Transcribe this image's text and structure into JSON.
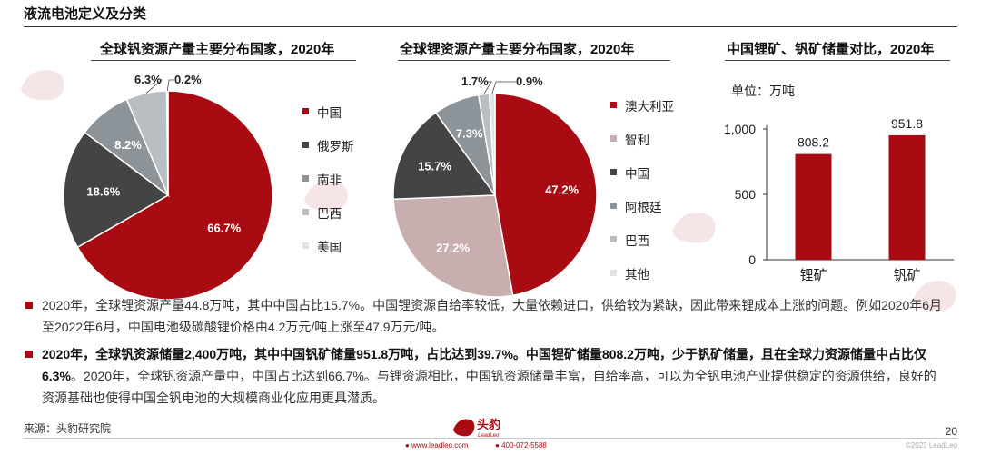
{
  "page": {
    "title": "液流电池定义及分类",
    "page_number": "20"
  },
  "colors": {
    "brand_red": "#a80c12",
    "dark_gray": "#444444",
    "mid_gray": "#8c9399",
    "light_gray": "#b9bec3",
    "pink": "#c9aeaf",
    "very_light_gray": "#e3e3e3"
  },
  "chart_data": [
    {
      "type": "pie",
      "title": "全球钒资源产量主要分布国家，2020年",
      "slices": [
        {
          "name": "中国",
          "value": 66.7,
          "label": "66.7%",
          "color": "#a80c12"
        },
        {
          "name": "俄罗斯",
          "value": 18.6,
          "label": "18.6%",
          "color": "#444444"
        },
        {
          "name": "南非",
          "value": 8.2,
          "label": "8.2%",
          "color": "#8c9399"
        },
        {
          "name": "巴西",
          "value": 6.3,
          "label": "6.3%",
          "color": "#b9bec3"
        },
        {
          "name": "美国",
          "value": 0.2,
          "label": "0.2%",
          "color": "#e3e3e3"
        }
      ],
      "legend_position": "right"
    },
    {
      "type": "pie",
      "title": "全球锂资源产量主要分布国家，2020年",
      "slices": [
        {
          "name": "澳大利亚",
          "value": 47.2,
          "label": "47.2%",
          "color": "#a80c12"
        },
        {
          "name": "智利",
          "value": 27.2,
          "label": "27.2%",
          "color": "#c9aeaf"
        },
        {
          "name": "中国",
          "value": 15.7,
          "label": "15.7%",
          "color": "#444444"
        },
        {
          "name": "阿根廷",
          "value": 7.3,
          "label": "7.3%",
          "color": "#8c9399"
        },
        {
          "name": "巴西",
          "value": 1.7,
          "label": "1.7%",
          "color": "#b9bec3"
        },
        {
          "name": "其他",
          "value": 0.9,
          "label": "0.9%",
          "color": "#e3e3e3"
        }
      ],
      "legend_position": "right"
    },
    {
      "type": "bar",
      "title": "中国锂矿、钒矿储量对比，2020年",
      "unit": "单位：万吨",
      "categories": [
        "锂矿",
        "钒矿"
      ],
      "values": [
        808.2,
        951.8
      ],
      "value_labels": [
        "808.2",
        "951.8"
      ],
      "ylim": [
        0,
        1000
      ],
      "yticks": [
        0,
        500,
        1000
      ],
      "ytick_labels": [
        "0",
        "500",
        "1,000"
      ],
      "color": "#a80c12",
      "grid": false
    }
  ],
  "bullets": [
    {
      "segments": [
        {
          "text": "2020年，全球锂资源产量44.8万吨，其中中国占比15.7%。中国锂资源自给率较低，大量依赖进口，供给较为紧缺，因此带来锂成本上涨的问题。例如2020年6月至2022年6月，中国电池级碳酸锂价格由4.2万元/吨上涨至47.9万元/吨。",
          "bold": false
        }
      ]
    },
    {
      "segments": [
        {
          "text": "2020年，全球钒资源储量2,400万吨，其中中国钒矿储量951.8万吨，占比达到39.7%。中国锂矿储量808.2万吨，少于钒矿储量，且在全球力资源储量中占比仅6.3%",
          "bold": true
        },
        {
          "text": "。2020年，全球钒资源产量中，中国占比达到66.7%。与锂资源相比，中国钒资源储量丰富，自给率高，可以为全钒电池产业提供稳定的资源供给，良好的资源基础也使得中国全钒电池的大规模商业化应用更具潜质。",
          "bold": false
        }
      ]
    }
  ],
  "footer": {
    "source": "来源：头豹研究院",
    "logo_text": "头豹",
    "logo_sub": "LeadLeo",
    "website": "www.leadleo.com",
    "phone": "400-072-5588",
    "copyright": "©2023 LeadLeo"
  }
}
